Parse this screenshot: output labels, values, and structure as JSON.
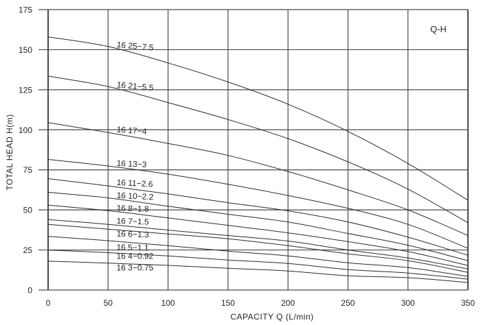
{
  "chart_data": {
    "type": "line",
    "title": "Q-H",
    "xlabel": "CAPACITY  Q (L/min)",
    "ylabel": "TOTAL HEAD  H(m)",
    "xlim": [
      0,
      350
    ],
    "ylim": [
      0,
      175
    ],
    "x_ticks": [
      0,
      50,
      100,
      150,
      200,
      250,
      300,
      350
    ],
    "y_ticks": [
      0,
      25,
      50,
      75,
      100,
      125,
      150,
      175
    ],
    "grid": true,
    "legend": "inline labels",
    "x": [
      0,
      50,
      100,
      150,
      200,
      250,
      300,
      350
    ],
    "series": [
      {
        "name": "16 25-7.5",
        "values": [
          158,
          152,
          141.7,
          129.8,
          116,
          99,
          79,
          56
        ],
        "label_pos": [
          57,
          151.5
        ],
        "label_rot": 5
      },
      {
        "name": "16 21-5.5",
        "values": [
          133.5,
          127,
          117,
          106.4,
          94.5,
          80,
          63,
          42
        ],
        "label_pos": [
          57,
          126.5
        ],
        "label_rot": 5
      },
      {
        "name": "16 17-4",
        "values": [
          104.5,
          98.3,
          91.5,
          84,
          74,
          62.5,
          50,
          34
        ],
        "label_pos": [
          57,
          98.5
        ],
        "label_rot": 4
      },
      {
        "name": "16 13-3",
        "values": [
          81.5,
          77.4,
          72.3,
          66,
          59,
          51,
          41,
          26
        ],
        "label_pos": [
          57,
          77.5
        ],
        "label_rot": 3
      },
      {
        "name": "16 11-2.6",
        "values": [
          69.5,
          65,
          60,
          54.5,
          49.4,
          42.5,
          33,
          21.7
        ],
        "label_pos": [
          57,
          65.5
        ],
        "label_rot": 3
      },
      {
        "name": "16 10-2.2",
        "values": [
          61,
          57.5,
          52.3,
          47.3,
          42.5,
          35.3,
          28,
          18.3
        ],
        "label_pos": [
          57,
          57.5
        ],
        "label_rot": 3
      },
      {
        "name": "16 8-1.8",
        "values": [
          53,
          49.5,
          45,
          40.4,
          35.7,
          30.2,
          24,
          15.3
        ],
        "label_pos": [
          57,
          49.5
        ],
        "label_rot": 2
      },
      {
        "name": "16 7-1.5",
        "values": [
          44,
          41,
          37.4,
          34,
          30.6,
          25,
          20,
          13.2
        ],
        "label_pos": [
          57,
          41.5
        ],
        "label_rot": 2
      },
      {
        "name": "16 6-1.3",
        "values": [
          41,
          38,
          35,
          32,
          27.7,
          22.6,
          18.3,
          11
        ],
        "label_pos": [
          57,
          33.5
        ],
        "label_rot": 2
      },
      {
        "name": "16 5-1.1",
        "values": [
          33.5,
          30.8,
          27.7,
          24.3,
          21.3,
          17,
          14,
          8.5
        ],
        "label_pos": [
          57,
          25
        ],
        "label_rot": 1
      },
      {
        "name": "16 4-0.92",
        "values": [
          25,
          23.3,
          21.3,
          18.7,
          16.6,
          12.8,
          10.6,
          6.8
        ],
        "label_pos": [
          57,
          19.5
        ],
        "label_rot": 0
      },
      {
        "name": "16 3-0.75",
        "values": [
          18,
          16.8,
          15.4,
          13.6,
          11.9,
          8.9,
          7.7,
          4.7
        ],
        "label_pos": [
          57,
          12.3
        ],
        "label_rot": 0
      }
    ]
  },
  "colors": {
    "grid": "#4a4a4a",
    "curve": "#2a2a2a",
    "text": "#222222",
    "background": "#ffffff"
  }
}
